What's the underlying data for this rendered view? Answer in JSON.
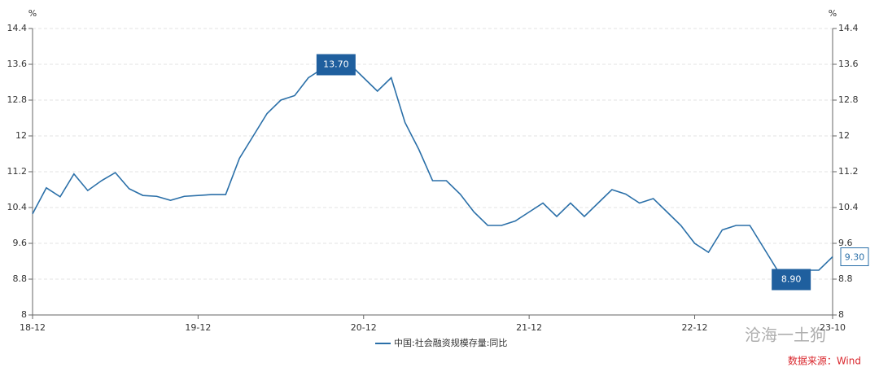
{
  "chart_data": {
    "type": "line",
    "y_unit": "%",
    "y2_unit": "%",
    "categories": [
      "18-12",
      null,
      null,
      null,
      null,
      null,
      null,
      null,
      null,
      null,
      null,
      null,
      "19-12",
      null,
      null,
      null,
      null,
      null,
      null,
      null,
      null,
      null,
      null,
      null,
      "20-12",
      null,
      null,
      null,
      null,
      null,
      null,
      null,
      null,
      null,
      null,
      null,
      "21-12",
      null,
      null,
      null,
      null,
      null,
      null,
      null,
      null,
      null,
      null,
      null,
      "22-12",
      null,
      null,
      null,
      null,
      null,
      null,
      null,
      null,
      null,
      "23-10"
    ],
    "series": [
      {
        "name": "中国:社会融资规模存量:同比",
        "color": "#2a6fa8",
        "values": [
          10.26,
          10.84,
          10.64,
          11.15,
          10.78,
          11.0,
          11.18,
          10.82,
          10.67,
          10.65,
          10.56,
          10.65,
          10.67,
          10.69,
          10.69,
          11.5,
          12.0,
          12.5,
          12.8,
          12.9,
          13.3,
          13.5,
          13.7,
          13.6,
          13.3,
          13.0,
          13.3,
          12.3,
          11.7,
          11.0,
          11.0,
          10.7,
          10.3,
          10.0,
          10.0,
          10.1,
          10.3,
          10.5,
          10.2,
          10.5,
          10.2,
          10.5,
          10.8,
          10.7,
          10.5,
          10.6,
          10.3,
          10.0,
          9.6,
          9.4,
          9.9,
          10.0,
          10.0,
          9.5,
          9.0,
          8.9,
          9.0,
          9.0,
          9.3
        ],
        "value_labels": [
          null,
          null,
          null,
          null,
          null,
          null,
          null,
          null,
          null,
          null,
          null,
          null,
          null,
          null,
          null,
          null,
          null,
          null,
          null,
          null,
          null,
          null,
          "13.70",
          null,
          null,
          null,
          null,
          null,
          null,
          null,
          null,
          null,
          null,
          null,
          null,
          null,
          null,
          null,
          null,
          null,
          null,
          null,
          null,
          null,
          null,
          null,
          null,
          null,
          null,
          null,
          null,
          null,
          null,
          null,
          null,
          "8.90",
          null,
          null,
          "9.30"
        ]
      }
    ],
    "ylim": [
      8,
      14.4
    ],
    "yticks": [
      8,
      8.8,
      9.6,
      10.4,
      11.2,
      12,
      12.8,
      13.6,
      14.4
    ],
    "y2lim": [
      8,
      14.4
    ],
    "y2ticks": [
      8,
      8.8,
      9.6,
      10.4,
      11.2,
      12,
      12.8,
      13.6,
      14.4
    ],
    "grid": true,
    "legend": "bottom",
    "source": "数据来源：Wind",
    "watermark": "沧海一土狗"
  }
}
